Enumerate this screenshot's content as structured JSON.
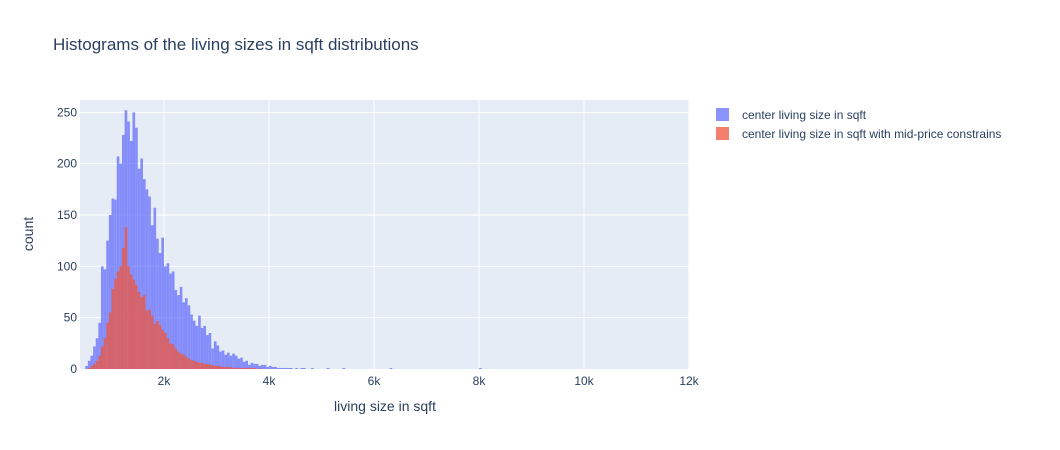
{
  "chart_data": {
    "type": "histogram",
    "title": "Histograms of the living sizes in sqft distributions",
    "xlabel": "living size in sqft",
    "ylabel": "count",
    "xlim": [
      400,
      12000
    ],
    "ylim": [
      0,
      262
    ],
    "bin_width": 50,
    "bin_start": 500,
    "x_ticks": [
      2000,
      4000,
      6000,
      8000,
      10000,
      12000
    ],
    "x_tick_labels": [
      "2k",
      "4k",
      "6k",
      "8k",
      "10k",
      "12k"
    ],
    "y_ticks": [
      0,
      50,
      100,
      150,
      200,
      250
    ],
    "y_tick_labels": [
      "0",
      "50",
      "100",
      "150",
      "200",
      "250"
    ],
    "grid": true,
    "legend_position": "right",
    "series": [
      {
        "name": "center living size in sqft",
        "color": "#636efa",
        "values": [
          3,
          8,
          13,
          22,
          30,
          45,
          100,
          97,
          125,
          150,
          166,
          165,
          207,
          200,
          228,
          252,
          241,
          222,
          250,
          235,
          195,
          205,
          185,
          175,
          168,
          140,
          157,
          127,
          113,
          128,
          100,
          103,
          93,
          95,
          77,
          72,
          80,
          65,
          69,
          62,
          53,
          47,
          42,
          52,
          40,
          42,
          33,
          35,
          20,
          27,
          23,
          17,
          18,
          14,
          16,
          13,
          15,
          13,
          10,
          11,
          7,
          8,
          4,
          6,
          5,
          5,
          3,
          4,
          4,
          2,
          3,
          2,
          2,
          1,
          1,
          1,
          1,
          1,
          1,
          0,
          1,
          0,
          1,
          1,
          0,
          0,
          1,
          0,
          0,
          0,
          0,
          0,
          1,
          0,
          0,
          0,
          0,
          0,
          1,
          0,
          0,
          0,
          0,
          0,
          0,
          0,
          0,
          0,
          0,
          0,
          0,
          0,
          0,
          0,
          0,
          0,
          1,
          0,
          0,
          0,
          0,
          0,
          0,
          0,
          0,
          0,
          0,
          0,
          0,
          0,
          0,
          0,
          0,
          0,
          0,
          0,
          0,
          0,
          0,
          0,
          0,
          0,
          0,
          0,
          0,
          0,
          0,
          0,
          0,
          0,
          1,
          0,
          0,
          0,
          0,
          0,
          0,
          0,
          0,
          0,
          0,
          0,
          0,
          0,
          0,
          0,
          0,
          0,
          0,
          0,
          0,
          0,
          0,
          0,
          0,
          0,
          0,
          0,
          0,
          0,
          0,
          0,
          0,
          0,
          0,
          0,
          0,
          0,
          0,
          0,
          0,
          0,
          0,
          0,
          0,
          0,
          0,
          0,
          0,
          0,
          0,
          0,
          0,
          0,
          0,
          0,
          0,
          0,
          0,
          0,
          0,
          0,
          0,
          0,
          0,
          0,
          0,
          0,
          0,
          0,
          0,
          0,
          0,
          0,
          0,
          0,
          0,
          0,
          0,
          0,
          0,
          0,
          0,
          0,
          0,
          0,
          0,
          0,
          0,
          0,
          0,
          0
        ]
      },
      {
        "name": "center living size in sqft with mid-price constrains",
        "color": "#ef553b",
        "values": [
          0,
          1,
          3,
          5,
          8,
          13,
          22,
          30,
          45,
          55,
          78,
          88,
          95,
          100,
          118,
          138,
          100,
          92,
          87,
          82,
          75,
          70,
          72,
          57,
          58,
          52,
          44,
          47,
          43,
          38,
          35,
          30,
          25,
          24,
          20,
          17,
          15,
          14,
          12,
          10,
          9,
          8,
          7,
          6,
          6,
          5,
          5,
          4,
          4,
          3,
          3,
          3,
          2,
          2,
          2,
          2,
          1,
          1,
          1,
          1,
          1,
          1,
          1,
          1,
          1,
          0,
          1,
          0,
          0,
          0,
          0,
          0,
          0,
          0,
          0,
          0,
          0,
          0,
          0,
          0,
          0,
          0,
          0,
          0,
          0,
          0,
          0,
          0,
          0,
          0,
          0,
          0,
          0,
          0,
          0,
          0,
          0,
          0,
          0,
          0,
          0,
          0,
          0,
          0,
          0,
          0,
          0,
          0,
          0,
          0,
          0,
          0,
          0,
          0,
          0,
          0,
          0,
          0,
          0,
          0,
          0,
          0,
          0,
          0,
          0,
          0,
          0,
          0,
          0,
          0,
          0,
          0,
          0,
          0,
          0,
          0,
          0,
          0,
          0,
          0,
          0,
          0,
          0,
          0,
          0,
          0,
          0,
          0,
          0,
          0,
          0,
          0,
          0,
          0,
          0,
          0,
          0,
          0,
          0,
          0,
          0,
          0,
          0,
          0,
          0,
          0,
          0,
          0,
          0,
          0,
          0,
          0,
          0,
          0,
          0,
          0,
          0,
          0,
          0,
          0,
          0,
          0,
          0,
          0,
          0,
          0,
          0,
          0,
          0,
          0,
          0,
          0,
          0,
          0,
          0,
          0,
          0,
          0,
          0,
          0,
          0,
          0,
          0,
          0,
          0,
          0,
          0,
          0,
          0,
          0,
          0,
          0,
          0,
          0,
          0,
          0,
          0,
          0,
          0,
          0,
          0,
          0,
          0,
          0,
          0,
          0,
          0,
          0,
          0,
          0,
          0,
          0,
          0,
          0,
          0,
          0,
          0,
          0
        ]
      }
    ]
  }
}
